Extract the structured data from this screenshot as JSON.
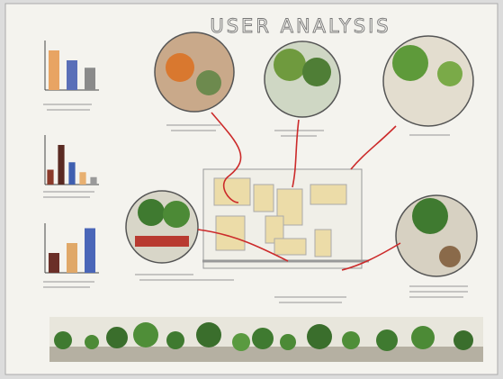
{
  "title": "USER ANALYSIS",
  "mini_charts": [
    {
      "type": "bar",
      "values": [
        8,
        6,
        4.5
      ],
      "colors": [
        "#e8a463",
        "#5a6fb8",
        "#8a8a8a"
      ],
      "ylim": [
        0,
        10
      ]
    },
    {
      "type": "bar",
      "values": [
        3,
        8,
        4.5,
        2.5,
        1.5
      ],
      "colors": [
        "#8b3a2a",
        "#5a2a22",
        "#3f5fb0",
        "#e8b070",
        "#9a9a9a"
      ],
      "ylim": [
        0,
        10
      ]
    },
    {
      "type": "bar",
      "values": [
        4,
        6,
        9
      ],
      "colors": [
        "#6b2f28",
        "#e0a868",
        "#4a66b8"
      ],
      "ylim": [
        0,
        10
      ]
    }
  ]
}
